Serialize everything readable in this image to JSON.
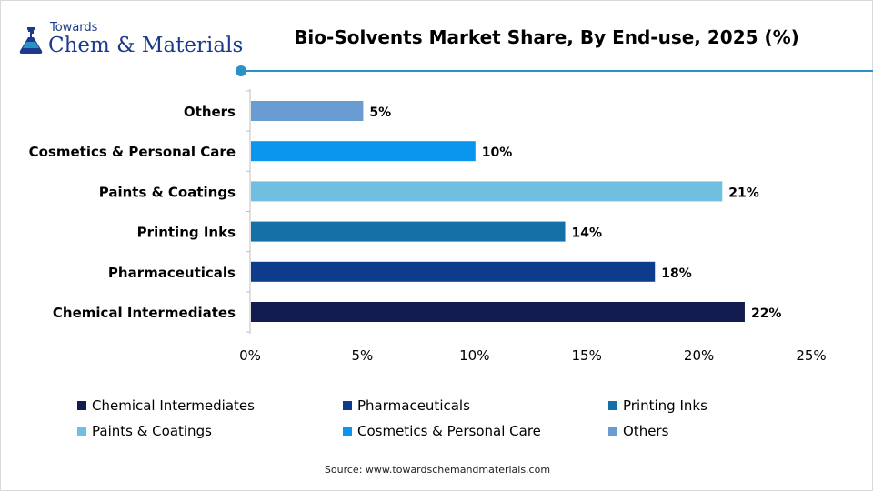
{
  "logo": {
    "line1": "Towards",
    "line2": "Chem & Materials"
  },
  "header": {
    "title": "Bio-Solvents Market Share, By End-use, 2025 (%)"
  },
  "chart_data": {
    "type": "bar",
    "orientation": "horizontal",
    "categories": [
      "Others",
      "Cosmetics & Personal Care",
      "Paints & Coatings",
      "Printing Inks",
      "Pharmaceuticals",
      "Chemical Intermediates"
    ],
    "values": [
      5,
      10,
      21,
      14,
      18,
      22
    ],
    "data_labels": [
      "5%",
      "10%",
      "21%",
      "14%",
      "18%",
      "22%"
    ],
    "colors": [
      "#6a9bd1",
      "#0a96ef",
      "#70bfe1",
      "#1470a6",
      "#0f3b8c",
      "#131c4e"
    ],
    "xlim": [
      0,
      25
    ],
    "x_ticks": [
      0,
      5,
      10,
      15,
      20,
      25
    ],
    "x_tick_labels": [
      "0%",
      "5%",
      "10%",
      "15%",
      "20%",
      "25%"
    ],
    "grid": false,
    "legend_placement": "bottom"
  },
  "legend": [
    {
      "label": "Chemical Intermediates",
      "color": "#131c4e"
    },
    {
      "label": "Pharmaceuticals",
      "color": "#0f3b8c"
    },
    {
      "label": "Printing Inks",
      "color": "#1470a6"
    },
    {
      "label": "Paints & Coatings",
      "color": "#70bfe1"
    },
    {
      "label": "Cosmetics & Personal Care",
      "color": "#0a96ef"
    },
    {
      "label": "Others",
      "color": "#6a9bd1"
    }
  ],
  "source": {
    "prefix": "Source:",
    "url": "www.towardschemandmaterials.com"
  }
}
